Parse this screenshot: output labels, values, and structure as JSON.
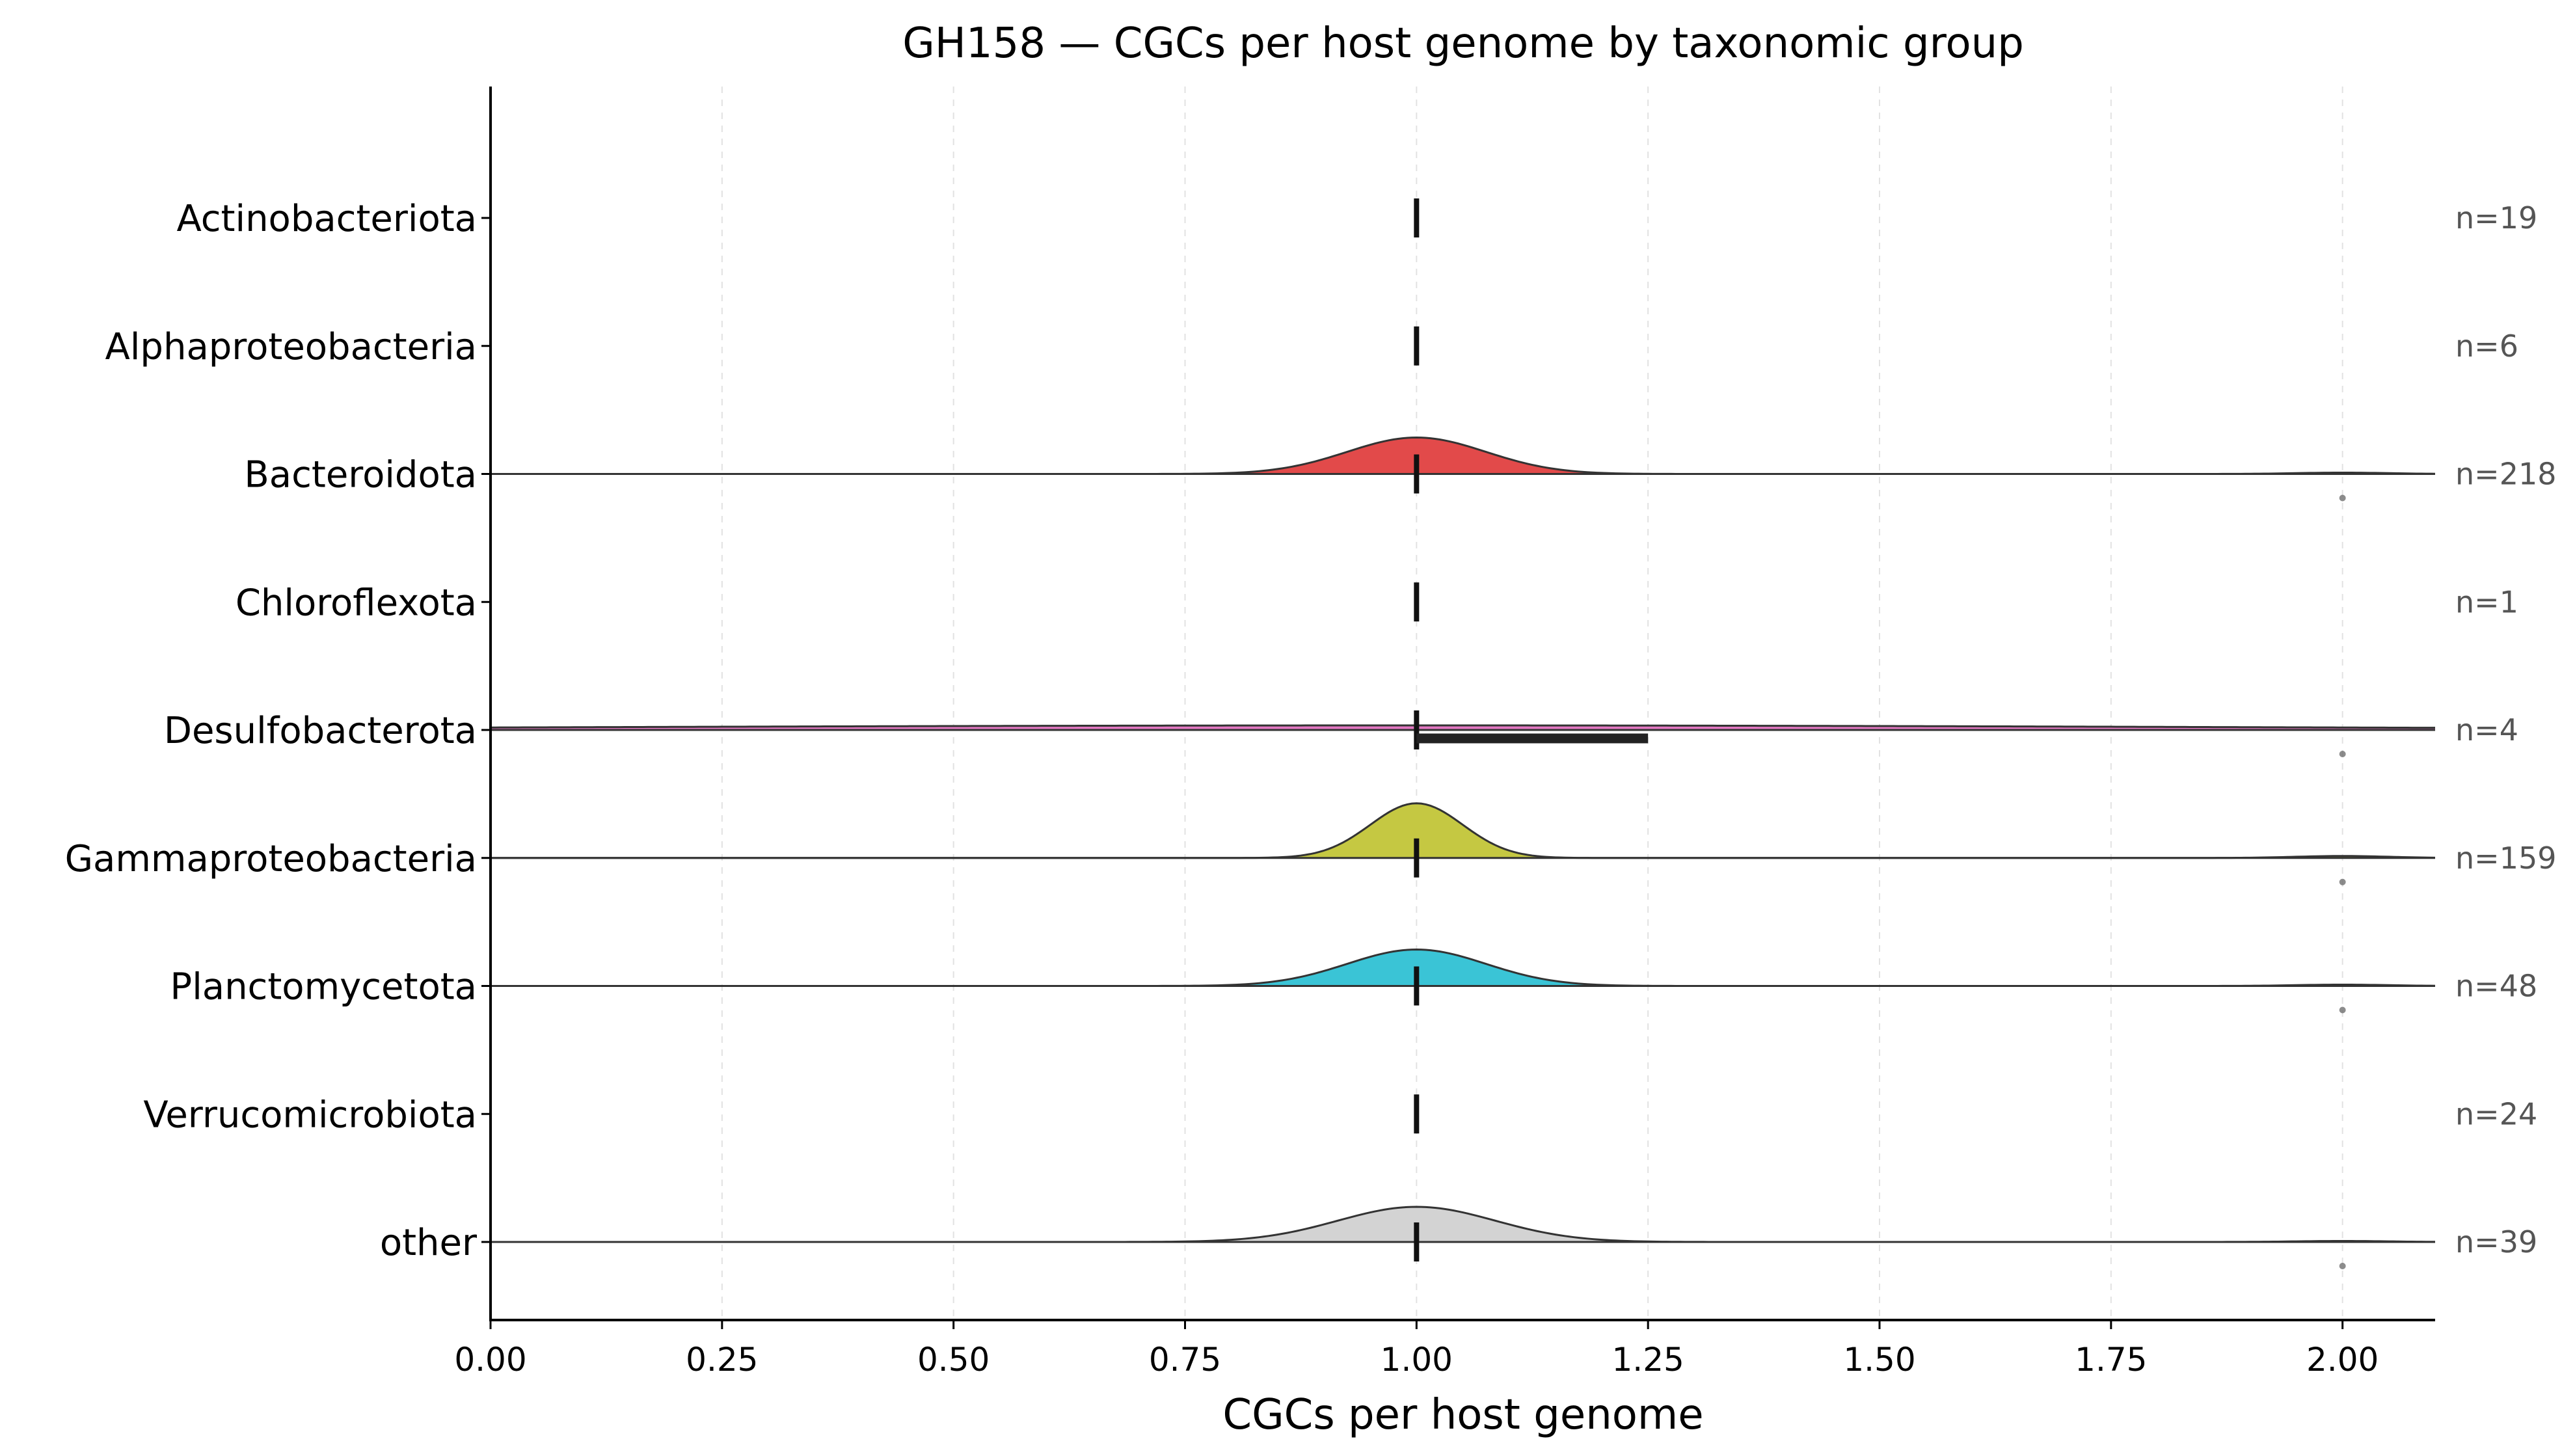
{
  "chart_data": {
    "type": "ridgeline",
    "title": "GH158 — CGCs per host genome by taxonomic group",
    "xlabel": "CGCs per host genome",
    "ylabel": "",
    "xlim": [
      0,
      2.1
    ],
    "x_ticks": [
      "0.00",
      "0.25",
      "0.50",
      "0.75",
      "1.00",
      "1.25",
      "1.50",
      "1.75",
      "2.00"
    ],
    "x_tick_values": [
      0,
      0.25,
      0.5,
      0.75,
      1.0,
      1.25,
      1.5,
      1.75,
      2.0
    ],
    "grid": "x-dashed",
    "series": [
      {
        "name": "Actinobacteriota",
        "n_label": "n=19",
        "n": 19,
        "median": 1.0,
        "iqr": [
          1.0,
          1.0
        ],
        "density": "none",
        "outliers": [],
        "color": ""
      },
      {
        "name": "Alphaproteobacteria",
        "n_label": "n=6",
        "n": 6,
        "median": 1.0,
        "iqr": [
          1.0,
          1.0
        ],
        "density": "none",
        "outliers": [],
        "color": ""
      },
      {
        "name": "Bacteroidota",
        "n_label": "n=218",
        "n": 218,
        "median": 1.0,
        "iqr": [
          1.0,
          1.0
        ],
        "density": "peak",
        "outliers": [
          2.0
        ],
        "color": "#e24a4a"
      },
      {
        "name": "Chloroflexota",
        "n_label": "n=1",
        "n": 1,
        "median": 1.0,
        "iqr": [
          1.0,
          1.0
        ],
        "density": "none",
        "outliers": [],
        "color": ""
      },
      {
        "name": "Desulfobacterota",
        "n_label": "n=4",
        "n": 4,
        "median": 1.0,
        "iqr": [
          1.0,
          1.25
        ],
        "density": "flat",
        "outliers": [
          2.0
        ],
        "color": "#e377c2"
      },
      {
        "name": "Gammaproteobacteria",
        "n_label": "n=159",
        "n": 159,
        "median": 1.0,
        "iqr": [
          1.0,
          1.0
        ],
        "density": "narrow",
        "outliers": [
          2.0
        ],
        "color": "#c5c842"
      },
      {
        "name": "Planctomycetota",
        "n_label": "n=48",
        "n": 48,
        "median": 1.0,
        "iqr": [
          1.0,
          1.0
        ],
        "density": "peak",
        "outliers": [
          2.0
        ],
        "color": "#3ac4d6"
      },
      {
        "name": "Verrucomicrobiota",
        "n_label": "n=24",
        "n": 24,
        "median": 1.0,
        "iqr": [
          1.0,
          1.0
        ],
        "density": "none",
        "outliers": [],
        "color": ""
      },
      {
        "name": "other",
        "n_label": "n=39",
        "n": 39,
        "median": 1.0,
        "iqr": [
          1.0,
          1.0
        ],
        "density": "wide",
        "outliers": [
          2.0
        ],
        "color": "#d3d3d3"
      }
    ]
  }
}
